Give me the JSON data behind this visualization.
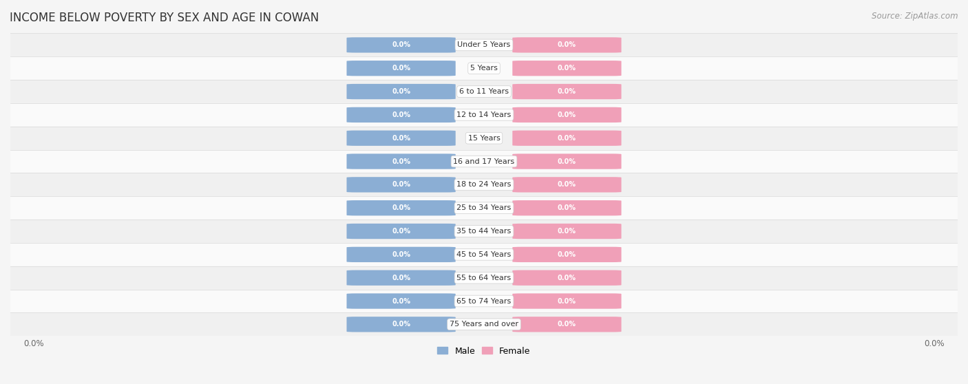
{
  "title": "INCOME BELOW POVERTY BY SEX AND AGE IN COWAN",
  "source": "Source: ZipAtlas.com",
  "categories": [
    "Under 5 Years",
    "5 Years",
    "6 to 11 Years",
    "12 to 14 Years",
    "15 Years",
    "16 and 17 Years",
    "18 to 24 Years",
    "25 to 34 Years",
    "35 to 44 Years",
    "45 to 54 Years",
    "55 to 64 Years",
    "65 to 74 Years",
    "75 Years and over"
  ],
  "male_values": [
    0.0,
    0.0,
    0.0,
    0.0,
    0.0,
    0.0,
    0.0,
    0.0,
    0.0,
    0.0,
    0.0,
    0.0,
    0.0
  ],
  "female_values": [
    0.0,
    0.0,
    0.0,
    0.0,
    0.0,
    0.0,
    0.0,
    0.0,
    0.0,
    0.0,
    0.0,
    0.0,
    0.0
  ],
  "male_color": "#8BAED4",
  "female_color": "#F0A0B8",
  "male_label": "Male",
  "female_label": "Female",
  "title_fontsize": 12,
  "source_fontsize": 8.5,
  "label_fontsize": 8,
  "tick_fontsize": 8.5,
  "bar_label_fontsize": 7,
  "row_bg_even": "#f0f0f0",
  "row_bg_odd": "#fafafa",
  "row_border": "#dddddd"
}
